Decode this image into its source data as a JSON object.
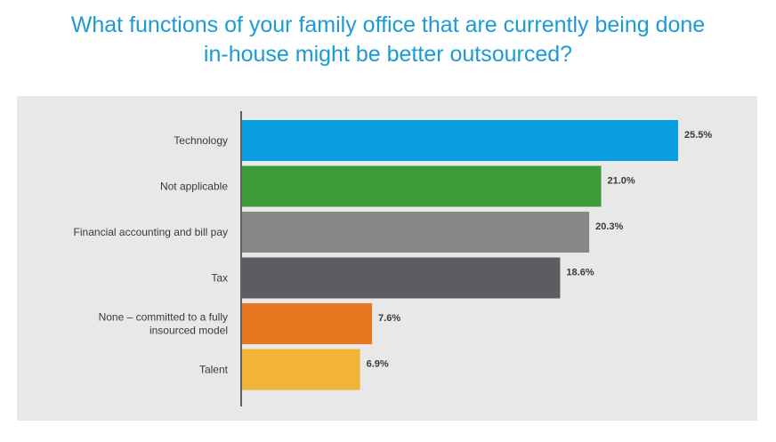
{
  "title_line1": "What functions of your family office that are currently being done",
  "title_line2": "in-house might be better outsourced?",
  "chart_data": {
    "type": "bar",
    "orientation": "horizontal",
    "categories": [
      [
        "Technology"
      ],
      [
        "Not applicable"
      ],
      [
        "Financial accounting and bill pay"
      ],
      [
        "Tax"
      ],
      [
        "None – committed to a fully",
        "insourced model"
      ],
      [
        "Talent"
      ]
    ],
    "values": [
      25.5,
      21.0,
      20.3,
      18.6,
      7.6,
      6.9
    ],
    "value_labels": [
      "25.5%",
      "21.0%",
      "20.3%",
      "18.6%",
      "7.6%",
      "6.9%"
    ],
    "colors": [
      "#0a9ddf",
      "#3d9b3a",
      "#87878a",
      "#5d5c61",
      "#e87722",
      "#f1b434"
    ],
    "xlim": [
      0,
      25.5
    ],
    "grid": false,
    "legend": "none"
  }
}
